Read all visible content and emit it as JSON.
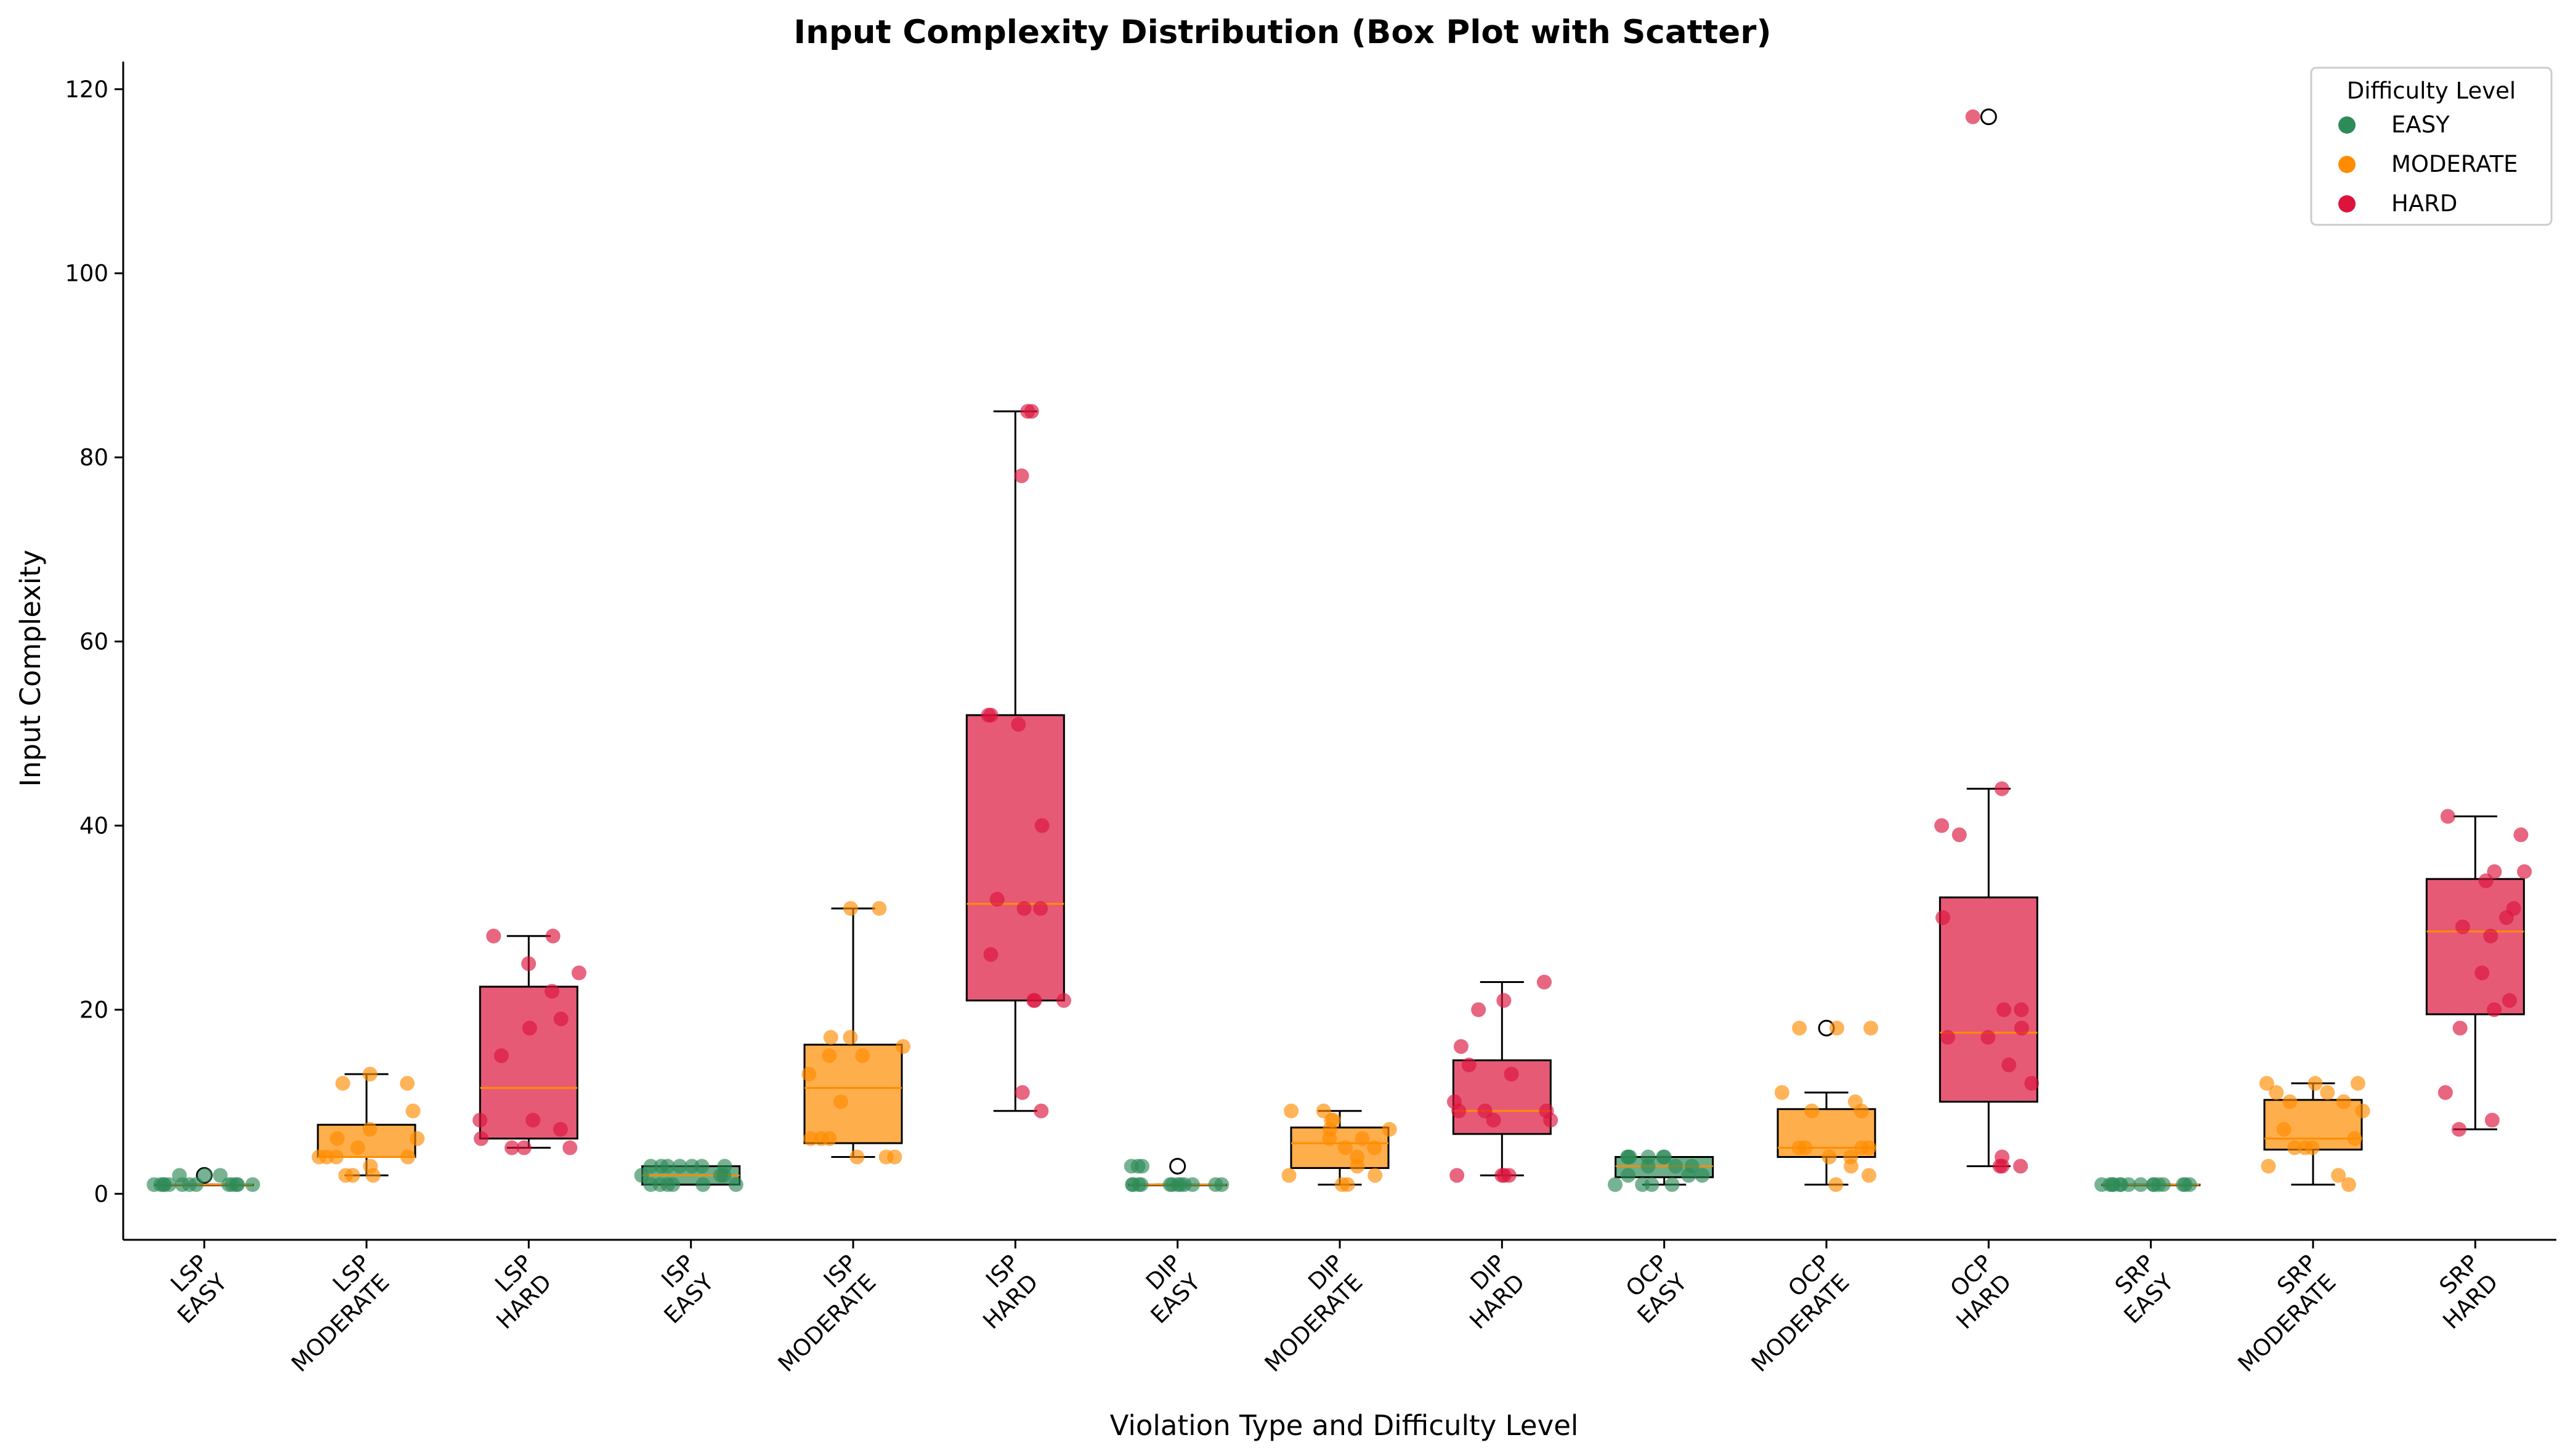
{
  "chart_data": {
    "type": "box",
    "title": "Input Complexity Distribution (Box Plot with Scatter)",
    "xlabel": "Violation Type and Difficulty Level",
    "ylabel": "Input Complexity",
    "ylim": [
      -5,
      123
    ],
    "yticks": [
      0,
      20,
      40,
      60,
      80,
      100,
      120
    ],
    "grid": false,
    "legend": {
      "title": "Difficulty Level",
      "placement": "top-right",
      "entries": [
        {
          "name": "EASY",
          "color": "#2e8b57"
        },
        {
          "name": "MODERATE",
          "color": "#ff8c00"
        },
        {
          "name": "HARD",
          "color": "#dc143c"
        }
      ]
    },
    "median_color": "#ff8c00",
    "boxes": [
      {
        "label_type": "LSP",
        "label_level": "EASY",
        "level": "EASY",
        "min": 1,
        "q1": 1,
        "median": 1,
        "q3": 1,
        "max": 1,
        "outliers": [
          2
        ],
        "points": [
          1,
          1,
          1,
          1,
          1,
          1,
          1,
          1,
          1,
          1,
          1,
          2,
          2,
          2,
          1,
          1
        ]
      },
      {
        "label_type": "LSP",
        "label_level": "MODERATE",
        "level": "MODERATE",
        "min": 2,
        "q1": 4,
        "median": 4,
        "q3": 7.5,
        "max": 13,
        "outliers": [],
        "points": [
          2,
          2,
          2,
          3,
          4,
          4,
          4,
          4,
          5,
          6,
          6,
          7,
          9,
          12,
          12,
          13
        ]
      },
      {
        "label_type": "LSP",
        "label_level": "HARD",
        "level": "HARD",
        "min": 5,
        "q1": 6,
        "median": 11.5,
        "q3": 22.5,
        "max": 28,
        "outliers": [],
        "points": [
          5,
          5,
          5,
          6,
          7,
          8,
          8,
          15,
          18,
          19,
          22,
          24,
          25,
          28,
          28
        ]
      },
      {
        "label_type": "ISP",
        "label_level": "EASY",
        "level": "EASY",
        "min": 1,
        "q1": 1,
        "median": 2,
        "q3": 3,
        "max": 3,
        "outliers": [],
        "points": [
          1,
          1,
          1,
          1,
          1,
          2,
          2,
          2,
          3,
          3,
          3,
          3,
          3,
          3,
          3,
          1
        ]
      },
      {
        "label_type": "ISP",
        "label_level": "MODERATE",
        "level": "MODERATE",
        "min": 4,
        "q1": 5.5,
        "median": 11.5,
        "q3": 16.2,
        "max": 31,
        "outliers": [],
        "points": [
          4,
          4,
          4,
          6,
          6,
          6,
          10,
          13,
          15,
          15,
          16,
          17,
          17,
          31,
          31
        ]
      },
      {
        "label_type": "ISP",
        "label_level": "HARD",
        "level": "HARD",
        "min": 9,
        "q1": 21,
        "median": 31.5,
        "q3": 52,
        "max": 85,
        "outliers": [],
        "points": [
          9,
          11,
          21,
          21,
          21,
          26,
          31,
          31,
          32,
          40,
          51,
          52,
          52,
          78,
          85,
          85
        ]
      },
      {
        "label_type": "DIP",
        "label_level": "EASY",
        "level": "EASY",
        "min": 1,
        "q1": 1,
        "median": 1,
        "q3": 1,
        "max": 1,
        "outliers": [
          3
        ],
        "points": [
          1,
          1,
          1,
          1,
          1,
          1,
          1,
          1,
          1,
          1,
          1,
          3,
          3,
          3,
          1
        ]
      },
      {
        "label_type": "DIP",
        "label_level": "MODERATE",
        "level": "MODERATE",
        "min": 1,
        "q1": 2.8,
        "median": 5.5,
        "q3": 7.2,
        "max": 9,
        "outliers": [],
        "points": [
          1,
          1,
          2,
          2,
          3,
          4,
          5,
          5,
          6,
          6,
          7,
          7,
          8,
          8,
          9,
          9
        ]
      },
      {
        "label_type": "DIP",
        "label_level": "HARD",
        "level": "HARD",
        "min": 2,
        "q1": 6.5,
        "median": 9,
        "q3": 14.5,
        "max": 23,
        "outliers": [],
        "points": [
          2,
          2,
          2,
          2,
          8,
          8,
          9,
          9,
          9,
          10,
          13,
          14,
          16,
          20,
          21,
          23
        ]
      },
      {
        "label_type": "OCP",
        "label_level": "EASY",
        "level": "EASY",
        "min": 1,
        "q1": 1.8,
        "median": 3,
        "q3": 4,
        "max": 4,
        "outliers": [],
        "points": [
          1,
          1,
          1,
          1,
          2,
          2,
          2,
          3,
          3,
          3,
          4,
          4,
          4,
          4,
          4,
          4
        ]
      },
      {
        "label_type": "OCP",
        "label_level": "MODERATE",
        "level": "MODERATE",
        "min": 1,
        "q1": 4,
        "median": 5,
        "q3": 9.2,
        "max": 11,
        "outliers": [
          18
        ],
        "points": [
          1,
          2,
          3,
          4,
          4,
          5,
          5,
          5,
          5,
          9,
          9,
          10,
          11,
          18,
          18,
          18
        ]
      },
      {
        "label_type": "OCP",
        "label_level": "HARD",
        "level": "HARD",
        "min": 3,
        "q1": 10,
        "median": 17.5,
        "q3": 32.2,
        "max": 44,
        "outliers": [
          117
        ],
        "points": [
          3,
          3,
          3,
          4,
          12,
          14,
          17,
          17,
          18,
          20,
          20,
          30,
          39,
          40,
          44,
          117
        ]
      },
      {
        "label_type": "SRP",
        "label_level": "EASY",
        "level": "EASY",
        "min": 1,
        "q1": 1,
        "median": 1,
        "q3": 1,
        "max": 1,
        "outliers": [],
        "points": [
          1,
          1,
          1,
          1,
          1,
          1,
          1,
          1,
          1,
          1,
          1,
          1,
          1,
          1,
          1
        ]
      },
      {
        "label_type": "SRP",
        "label_level": "MODERATE",
        "level": "MODERATE",
        "min": 1,
        "q1": 4.8,
        "median": 6,
        "q3": 10.2,
        "max": 12,
        "outliers": [],
        "points": [
          1,
          2,
          3,
          5,
          5,
          5,
          6,
          7,
          9,
          10,
          10,
          11,
          11,
          12,
          12,
          12
        ]
      },
      {
        "label_type": "SRP",
        "label_level": "HARD",
        "level": "HARD",
        "min": 7,
        "q1": 19.5,
        "median": 28.5,
        "q3": 34.2,
        "max": 41,
        "outliers": [],
        "points": [
          7,
          8,
          11,
          18,
          20,
          21,
          24,
          28,
          29,
          30,
          31,
          34,
          35,
          35,
          39,
          41
        ]
      }
    ]
  }
}
